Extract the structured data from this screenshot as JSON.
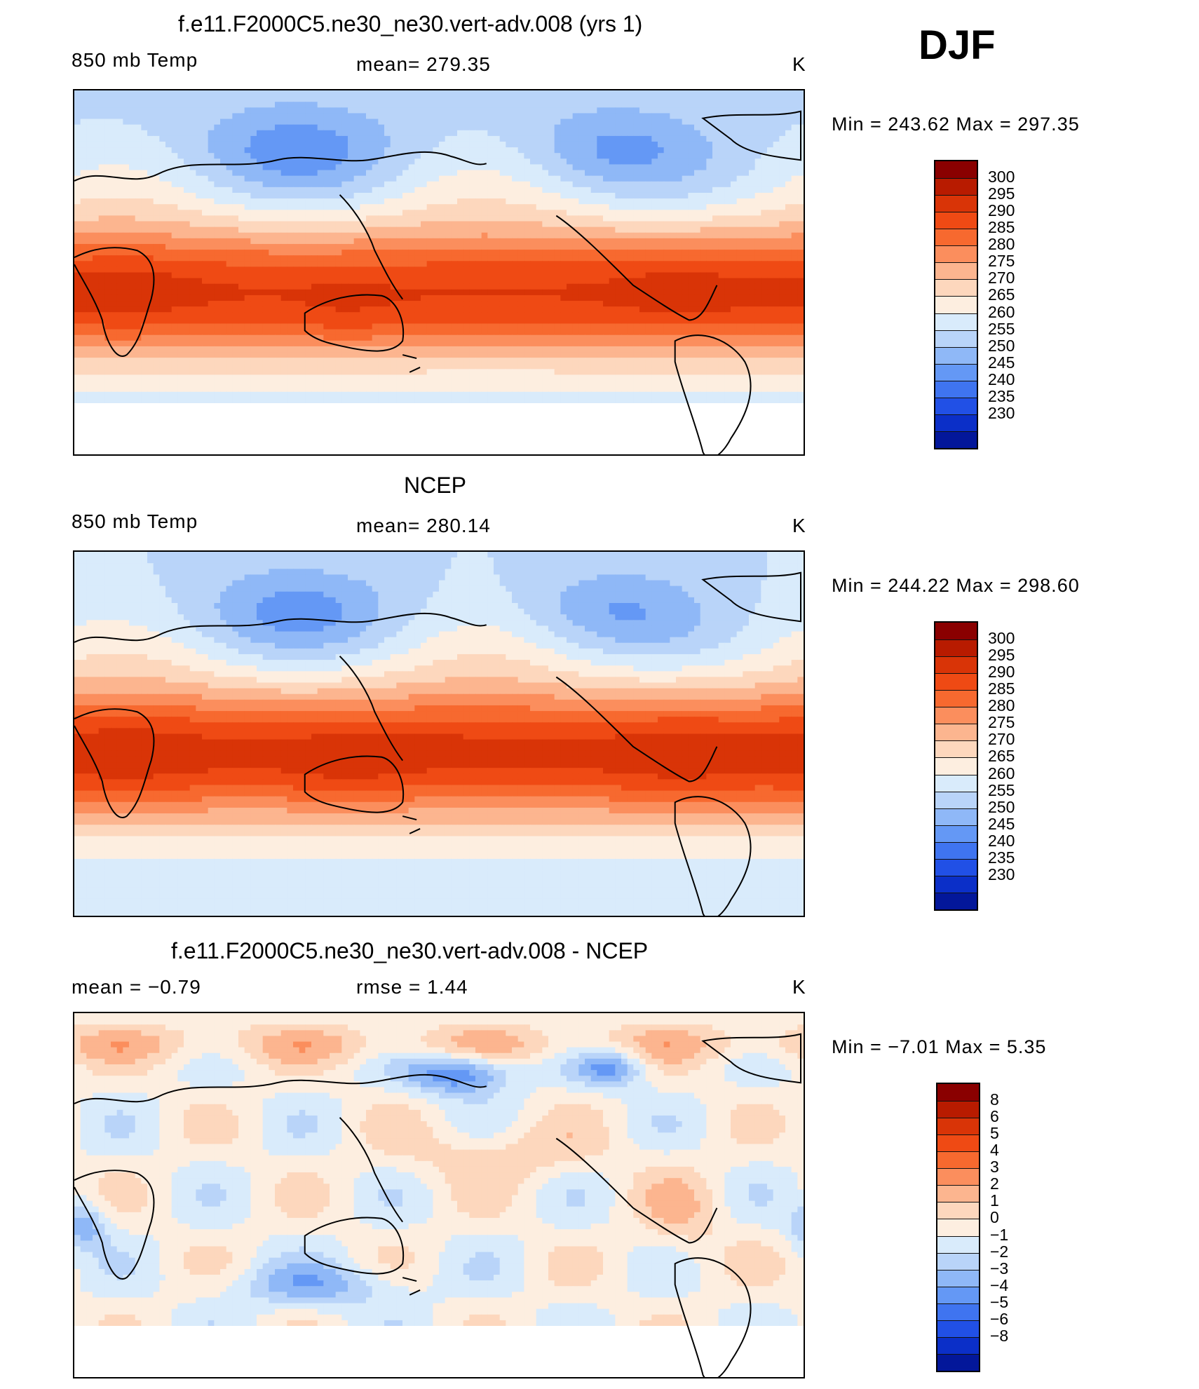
{
  "season": "DJF",
  "panels": [
    {
      "id": "model",
      "title": "f.e11.F2000C5.ne30_ne30.vert-adv.008 (yrs 1)",
      "left_label": "850 mb Temp",
      "center_label": "mean=  279.35",
      "units": "K",
      "stats": "Min  =  243.62  Max  =  297.35",
      "colorbar": "temp",
      "field": "model"
    },
    {
      "id": "ncep",
      "title": "NCEP",
      "left_label": "850 mb Temp",
      "center_label": "mean=  280.14",
      "units": "K",
      "stats": "Min  =  244.22  Max  =  298.60",
      "colorbar": "temp",
      "field": "obs"
    },
    {
      "id": "diff",
      "title": "f.e11.F2000C5.ne30_ne30.vert-adv.008 - NCEP",
      "left_label": "mean  =    −0.79",
      "center_label": "rmse  =     1.44",
      "units": "K",
      "stats": "Min  =   −7.01  Max  =     5.35",
      "colorbar": "diff",
      "field": "diff"
    }
  ],
  "colorbars": {
    "temp": {
      "labels": [
        "300",
        "295",
        "290",
        "285",
        "280",
        "275",
        "270",
        "265",
        "260",
        "255",
        "250",
        "245",
        "240",
        "235",
        "230"
      ],
      "colors": [
        "#8a0000",
        "#b81b00",
        "#d93407",
        "#ef4a14",
        "#f7692f",
        "#fb8e5d",
        "#fcb58f",
        "#fdd7bd",
        "#fdeee0",
        "#d9ebfb",
        "#b9d4f9",
        "#8fb8f7",
        "#6498f5",
        "#3f74f0",
        "#2150e6",
        "#0b2fc8",
        "#03179a"
      ]
    },
    "diff": {
      "labels": [
        "8",
        "6",
        "5",
        "4",
        "3",
        "2",
        "1",
        "0",
        "−1",
        "−2",
        "−3",
        "−4",
        "−5",
        "−6",
        "−8"
      ],
      "colors": [
        "#8a0000",
        "#b81b00",
        "#d93407",
        "#ef4a14",
        "#f7692f",
        "#fb8e5d",
        "#fcb58f",
        "#fdd7bd",
        "#fdeee0",
        "#d9ebfb",
        "#b9d4f9",
        "#8fb8f7",
        "#6498f5",
        "#3f74f0",
        "#2150e6",
        "#0b2fc8",
        "#03179a"
      ]
    }
  },
  "chart_data": {
    "type": "heatmap",
    "variable": "850 mb Temp",
    "units": "K",
    "season": "DJF",
    "panels": [
      {
        "title": "f.e11.F2000C5.ne30_ne30.vert-adv.008 (yrs 1)",
        "mean": 279.35,
        "min": 243.62,
        "max": 297.35
      },
      {
        "title": "NCEP",
        "mean": 280.14,
        "min": 244.22,
        "max": 298.6
      },
      {
        "title": "f.e11.F2000C5.ne30_ne30.vert-adv.008 - NCEP",
        "mean": -0.79,
        "rmse": 1.44,
        "min": -7.01,
        "max": 5.35
      }
    ],
    "contour_levels_temp": [
      230,
      235,
      240,
      245,
      250,
      255,
      260,
      265,
      270,
      275,
      280,
      285,
      290,
      295,
      300
    ],
    "contour_levels_diff": [
      -8,
      -6,
      -5,
      -4,
      -3,
      -2,
      -1,
      0,
      1,
      2,
      3,
      4,
      5,
      6,
      8
    ],
    "projection": "cylindrical equidistant, Pacific-centered"
  }
}
